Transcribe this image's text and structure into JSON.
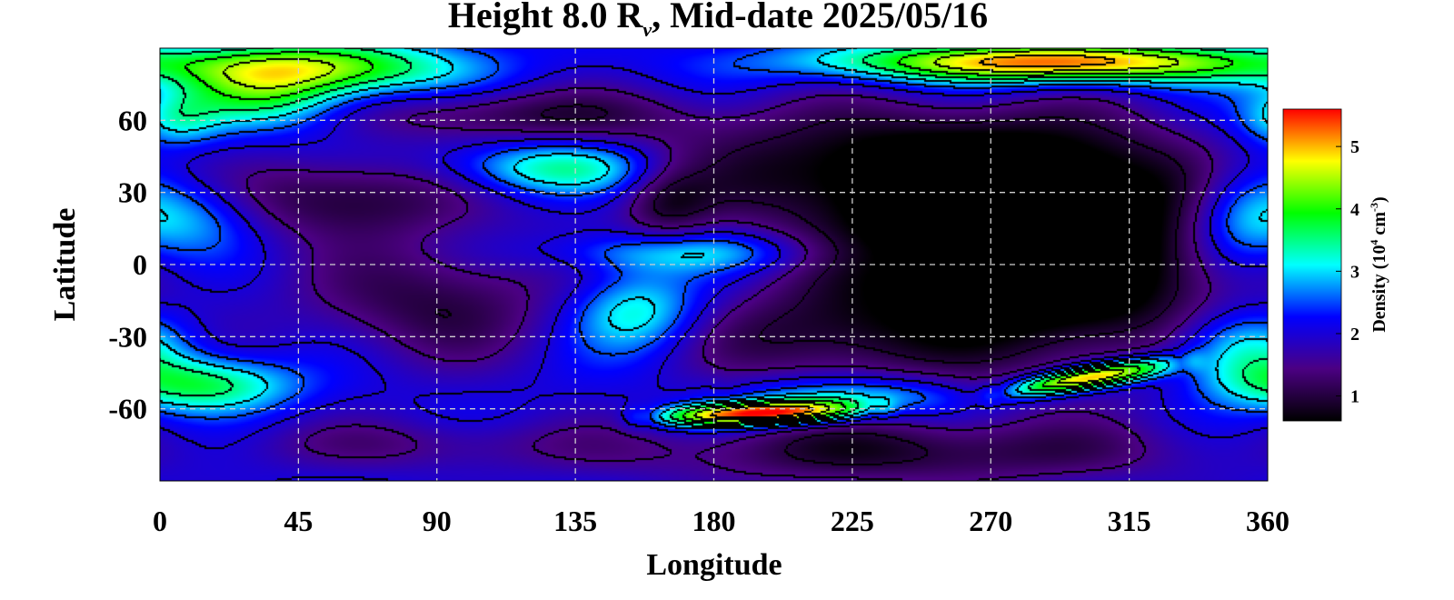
{
  "chart_data": {
    "type": "heatmap",
    "title": {
      "prefix": "Height 8.0 R",
      "subscript": "v",
      "suffix": ", Mid-date 2025/05/16"
    },
    "xlabel": "Longitude",
    "ylabel": "Latitude",
    "xlim": [
      0,
      360
    ],
    "ylim": [
      -90,
      90
    ],
    "x_ticks": [
      0,
      45,
      90,
      135,
      180,
      225,
      270,
      315,
      360
    ],
    "y_ticks": [
      60,
      30,
      0,
      -30,
      -60
    ],
    "x_tick_labels": [
      "0",
      "45",
      "90",
      "135",
      "180",
      "225",
      "270",
      "315",
      "360"
    ],
    "y_tick_labels": [
      "60",
      "30",
      "0",
      "-30",
      "-60"
    ],
    "grid": true,
    "colorbar": {
      "label_prefix": "Density (10",
      "label_exp1": "4",
      "label_mid": " cm",
      "label_exp2": "-3",
      "label_suffix": ")",
      "range": [
        0.6,
        5.6
      ],
      "ticks": [
        1,
        2,
        3,
        4,
        5
      ],
      "tick_labels": [
        "1",
        "2",
        "3",
        "4",
        "5"
      ],
      "placement": "right",
      "colormap": [
        "#000000",
        "#4b0082",
        "#0000ff",
        "#00ffff",
        "#00ff00",
        "#ffff00",
        "#ff0000"
      ]
    },
    "contour_levels": [
      1.0,
      1.5,
      2.0,
      2.5,
      3.0,
      3.5,
      4.0,
      4.5,
      5.0
    ],
    "features": [
      {
        "lon": 230,
        "lat": 40,
        "dlon": 55,
        "dlat": 18,
        "amp": -1.4
      },
      {
        "lon": 300,
        "lat": -10,
        "dlon": 40,
        "dlat": 25,
        "amp": -1.5
      },
      {
        "lon": 295,
        "lat": 30,
        "dlon": 35,
        "dlat": 22,
        "amp": -1.2
      },
      {
        "lon": 255,
        "lat": 5,
        "dlon": 35,
        "dlat": 30,
        "amp": -1.0
      },
      {
        "lon": 210,
        "lat": -30,
        "dlon": 30,
        "dlat": 15,
        "amp": -1.0
      },
      {
        "lon": 240,
        "lat": -78,
        "dlon": 65,
        "dlat": 10,
        "amp": -1.2
      },
      {
        "lon": 60,
        "lat": 28,
        "dlon": 28,
        "dlat": 12,
        "amp": -1.2
      },
      {
        "lon": 90,
        "lat": -15,
        "dlon": 30,
        "dlat": 18,
        "amp": -1.1
      },
      {
        "lon": 165,
        "lat": 25,
        "dlon": 10,
        "dlat": 12,
        "amp": -0.8
      },
      {
        "lon": 115,
        "lat": 62,
        "dlon": 40,
        "dlat": 8,
        "amp": -1.0
      },
      {
        "lon": 80,
        "lat": -75,
        "dlon": 40,
        "dlat": 8,
        "amp": -0.6
      },
      {
        "lon": 290,
        "lat": 84,
        "dlon": 50,
        "dlat": 6,
        "amp": 3.3
      },
      {
        "lon": 55,
        "lat": 82,
        "dlon": 30,
        "dlat": 8,
        "amp": 2.0
      },
      {
        "lon": 10,
        "lat": 20,
        "dlon": 15,
        "dlat": 12,
        "amp": 1.0
      },
      {
        "lon": 130,
        "lat": 40,
        "dlon": 25,
        "dlat": 8,
        "amp": 1.5
      },
      {
        "lon": 155,
        "lat": -20,
        "dlon": 15,
        "dlat": 12,
        "amp": 1.3
      },
      {
        "lon": 170,
        "lat": 5,
        "dlon": 30,
        "dlat": 6,
        "amp": 1.0
      },
      {
        "lon": 15,
        "lat": -50,
        "dlon": 20,
        "dlat": 8,
        "amp": 1.6
      },
      {
        "lon": 350,
        "lat": -35,
        "dlon": 15,
        "dlat": 12,
        "amp": 1.5
      },
      {
        "lon": 350,
        "lat": 20,
        "dlon": 12,
        "dlat": 15,
        "amp": 1.0
      },
      {
        "lon": 35,
        "lat": 70,
        "dlon": 20,
        "dlat": 10,
        "amp": 1.5
      },
      {
        "lon": 5,
        "lat": 60,
        "dlon": 10,
        "dlat": 8,
        "amp": 1.0
      }
    ],
    "ridges": [
      {
        "lon1": 155,
        "lat1": -64,
        "lon2": 235,
        "lat2": -60,
        "width_deg": 3.5,
        "amp": 3.6
      },
      {
        "lon1": 270,
        "lat1": -54,
        "lon2": 335,
        "lat2": -40,
        "width_deg": 3.5,
        "amp": 3.3
      },
      {
        "lon1": 180,
        "lat1": -55,
        "lon2": 270,
        "lat2": -55,
        "width_deg": 6,
        "amp": 1.2
      }
    ],
    "background_level": 2.1
  }
}
